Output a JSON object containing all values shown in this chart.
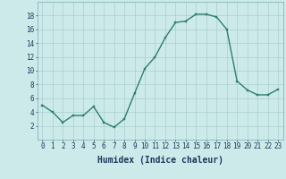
{
  "x": [
    0,
    1,
    2,
    3,
    4,
    5,
    6,
    7,
    8,
    9,
    10,
    11,
    12,
    13,
    14,
    15,
    16,
    17,
    18,
    19,
    20,
    21,
    22,
    23
  ],
  "y": [
    5,
    4,
    2.5,
    3.5,
    3.5,
    4.8,
    2.5,
    1.8,
    3,
    6.7,
    10.3,
    12,
    14.8,
    17,
    17.2,
    18.2,
    18.2,
    17.8,
    16,
    8.5,
    7.2,
    6.5,
    6.5,
    7.3
  ],
  "line_color": "#2e7d6e",
  "marker_color": "#2e7d6e",
  "bg_color": "#cdeaea",
  "grid_color": "#aacece",
  "xlabel": "Humidex (Indice chaleur)",
  "xlabel_fontsize": 7,
  "xlim": [
    -0.5,
    23.5
  ],
  "ylim": [
    0,
    20
  ],
  "yticks": [
    2,
    4,
    6,
    8,
    10,
    12,
    14,
    16,
    18
  ],
  "xticks": [
    0,
    1,
    2,
    3,
    4,
    5,
    6,
    7,
    8,
    9,
    10,
    11,
    12,
    13,
    14,
    15,
    16,
    17,
    18,
    19,
    20,
    21,
    22,
    23
  ],
  "tick_fontsize": 5.5,
  "line_width": 1.0,
  "marker_size": 2.0
}
